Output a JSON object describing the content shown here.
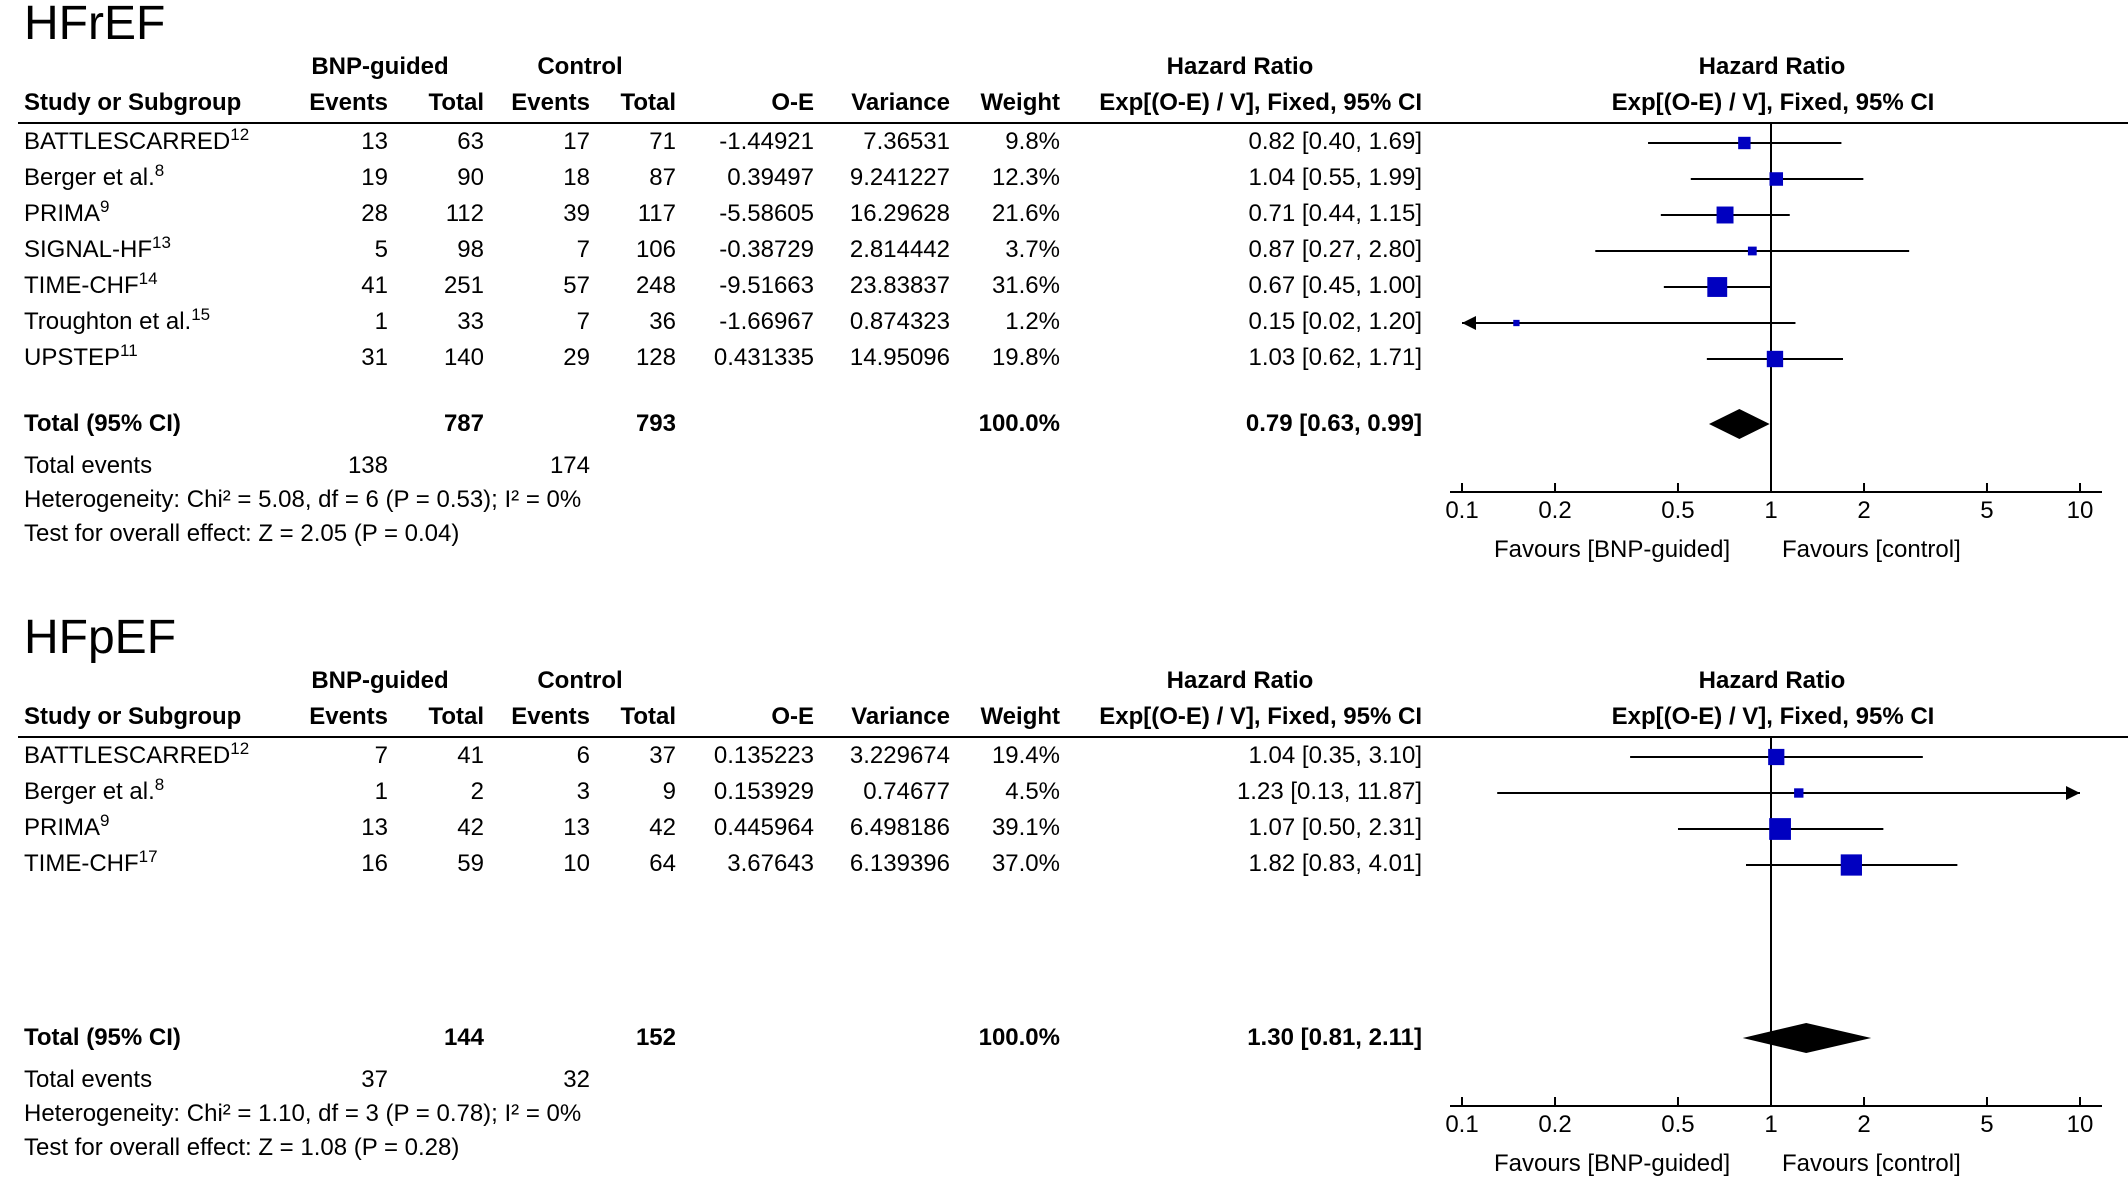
{
  "panels": [
    {
      "title": "HFrEF",
      "headers": {
        "group1": "BNP-guided",
        "group2": "Control",
        "hr_top": "Hazard Ratio",
        "hr_top_plot": "Hazard Ratio",
        "study": "Study or Subgroup",
        "events1": "Events",
        "total1": "Total",
        "events2": "Events",
        "total2": "Total",
        "oe": "O-E",
        "variance": "Variance",
        "weight": "Weight",
        "hr_sub": "Exp[(O-E) / V], Fixed, 95% CI",
        "hr_sub_plot": "Exp[(O-E) / V], Fixed, 95% CI"
      },
      "rows": [
        {
          "study": "BATTLESCARRED",
          "ref": "12",
          "e1": "13",
          "t1": "63",
          "e2": "17",
          "t2": "71",
          "oe": "-1.44921",
          "var": "7.36531",
          "weight": "9.8%",
          "ci": "0.82 [0.40, 1.69]"
        },
        {
          "study": "Berger et al.",
          "ref": "8",
          "e1": "19",
          "t1": "90",
          "e2": "18",
          "t2": "87",
          "oe": "0.39497",
          "var": "9.241227",
          "weight": "12.3%",
          "ci": "1.04 [0.55, 1.99]"
        },
        {
          "study": "PRIMA",
          "ref": "9",
          "e1": "28",
          "t1": "112",
          "e2": "39",
          "t2": "117",
          "oe": "-5.58605",
          "var": "16.29628",
          "weight": "21.6%",
          "ci": "0.71 [0.44, 1.15]"
        },
        {
          "study": "SIGNAL-HF",
          "ref": "13",
          "e1": "5",
          "t1": "98",
          "e2": "7",
          "t2": "106",
          "oe": "-0.38729",
          "var": "2.814442",
          "weight": "3.7%",
          "ci": "0.87 [0.27, 2.80]"
        },
        {
          "study": "TIME-CHF",
          "ref": "14",
          "e1": "41",
          "t1": "251",
          "e2": "57",
          "t2": "248",
          "oe": "-9.51663",
          "var": "23.83837",
          "weight": "31.6%",
          "ci": "0.67 [0.45, 1.00]"
        },
        {
          "study": "Troughton et al.",
          "ref": "15",
          "e1": "1",
          "t1": "33",
          "e2": "7",
          "t2": "36",
          "oe": "-1.66967",
          "var": "0.874323",
          "weight": "1.2%",
          "ci": "0.15 [0.02, 1.20]"
        },
        {
          "study": "UPSTEP",
          "ref": "11",
          "e1": "31",
          "t1": "140",
          "e2": "29",
          "t2": "128",
          "oe": "0.431335",
          "var": "14.95096",
          "weight": "19.8%",
          "ci": "1.03 [0.62, 1.71]"
        }
      ],
      "total": {
        "label": "Total (95% CI)",
        "t1": "787",
        "t2": "793",
        "weight": "100.0%",
        "ci": "0.79 [0.63, 0.99]"
      },
      "total_events": {
        "label": "Total events",
        "e1": "138",
        "e2": "174"
      },
      "heterogeneity": "Heterogeneity: Chi² = 5.08, df = 6 (P = 0.53); I² = 0%",
      "overall": "Test for overall effect: Z = 2.05 (P = 0.04)",
      "favours_left": "Favours [BNP-guided]",
      "favours_right": "Favours [control]"
    },
    {
      "title": "HFpEF",
      "headers": {
        "group1": "BNP-guided",
        "group2": "Control",
        "hr_top": "Hazard Ratio",
        "hr_top_plot": "Hazard Ratio",
        "study": "Study or Subgroup",
        "events1": "Events",
        "total1": "Total",
        "events2": "Events",
        "total2": "Total",
        "oe": "O-E",
        "variance": "Variance",
        "weight": "Weight",
        "hr_sub": "Exp[(O-E) / V], Fixed, 95% CI",
        "hr_sub_plot": "Exp[(O-E) / V], Fixed, 95% CI"
      },
      "rows": [
        {
          "study": "BATTLESCARRED",
          "ref": "12",
          "e1": "7",
          "t1": "41",
          "e2": "6",
          "t2": "37",
          "oe": "0.135223",
          "var": "3.229674",
          "weight": "19.4%",
          "ci": "1.04 [0.35, 3.10]"
        },
        {
          "study": "Berger et al.",
          "ref": "8",
          "e1": "1",
          "t1": "2",
          "e2": "3",
          "t2": "9",
          "oe": "0.153929",
          "var": "0.74677",
          "weight": "4.5%",
          "ci": "1.23 [0.13, 11.87]"
        },
        {
          "study": "PRIMA",
          "ref": "9",
          "e1": "13",
          "t1": "42",
          "e2": "13",
          "t2": "42",
          "oe": "0.445964",
          "var": "6.498186",
          "weight": "39.1%",
          "ci": "1.07 [0.50, 2.31]"
        },
        {
          "study": "TIME-CHF",
          "ref": "17",
          "e1": "16",
          "t1": "59",
          "e2": "10",
          "t2": "64",
          "oe": "3.67643",
          "var": "6.139396",
          "weight": "37.0%",
          "ci": "1.82 [0.83, 4.01]"
        }
      ],
      "total": {
        "label": "Total (95% CI)",
        "t1": "144",
        "t2": "152",
        "weight": "100.0%",
        "ci": "1.30 [0.81, 2.11]"
      },
      "total_events": {
        "label": "Total events",
        "e1": "37",
        "e2": "32"
      },
      "heterogeneity": "Heterogeneity: Chi² = 1.10, df = 3 (P = 0.78); I² = 0%",
      "overall": "Test for overall effect: Z = 1.08 (P = 0.28)",
      "favours_left": "Favours [BNP-guided]",
      "favours_right": "Favours [control]"
    }
  ],
  "chart_data": [
    {
      "type": "forest",
      "scale": "log",
      "xlim": [
        0.1,
        10
      ],
      "ticks": [
        0.1,
        0.2,
        0.5,
        1,
        2,
        5,
        10
      ],
      "tick_labels": [
        "0.1",
        "0.2",
        "0.5",
        "1",
        "2",
        "5",
        "10"
      ],
      "marker_color": "#0000c0",
      "studies": [
        {
          "name": "BATTLESCARRED",
          "hr": 0.82,
          "lo": 0.4,
          "hi": 1.69,
          "weight": 9.8
        },
        {
          "name": "Berger et al.",
          "hr": 1.04,
          "lo": 0.55,
          "hi": 1.99,
          "weight": 12.3
        },
        {
          "name": "PRIMA",
          "hr": 0.71,
          "lo": 0.44,
          "hi": 1.15,
          "weight": 21.6
        },
        {
          "name": "SIGNAL-HF",
          "hr": 0.87,
          "lo": 0.27,
          "hi": 2.8,
          "weight": 3.7
        },
        {
          "name": "TIME-CHF",
          "hr": 0.67,
          "lo": 0.45,
          "hi": 1.0,
          "weight": 31.6
        },
        {
          "name": "Troughton et al.",
          "hr": 0.15,
          "lo": 0.02,
          "hi": 1.2,
          "weight": 1.2
        },
        {
          "name": "UPSTEP",
          "hr": 1.03,
          "lo": 0.62,
          "hi": 1.71,
          "weight": 19.8
        }
      ],
      "pooled": {
        "hr": 0.79,
        "lo": 0.63,
        "hi": 0.99
      }
    },
    {
      "type": "forest",
      "scale": "log",
      "xlim": [
        0.1,
        10
      ],
      "ticks": [
        0.1,
        0.2,
        0.5,
        1,
        2,
        5,
        10
      ],
      "tick_labels": [
        "0.1",
        "0.2",
        "0.5",
        "1",
        "2",
        "5",
        "10"
      ],
      "marker_color": "#0000c0",
      "studies": [
        {
          "name": "BATTLESCARRED",
          "hr": 1.04,
          "lo": 0.35,
          "hi": 3.1,
          "weight": 19.4
        },
        {
          "name": "Berger et al.",
          "hr": 1.23,
          "lo": 0.13,
          "hi": 11.87,
          "weight": 4.5
        },
        {
          "name": "PRIMA",
          "hr": 1.07,
          "lo": 0.5,
          "hi": 2.31,
          "weight": 39.1
        },
        {
          "name": "TIME-CHF",
          "hr": 1.82,
          "lo": 0.83,
          "hi": 4.01,
          "weight": 37.0
        }
      ],
      "pooled": {
        "hr": 1.3,
        "lo": 0.81,
        "hi": 2.11
      }
    }
  ]
}
